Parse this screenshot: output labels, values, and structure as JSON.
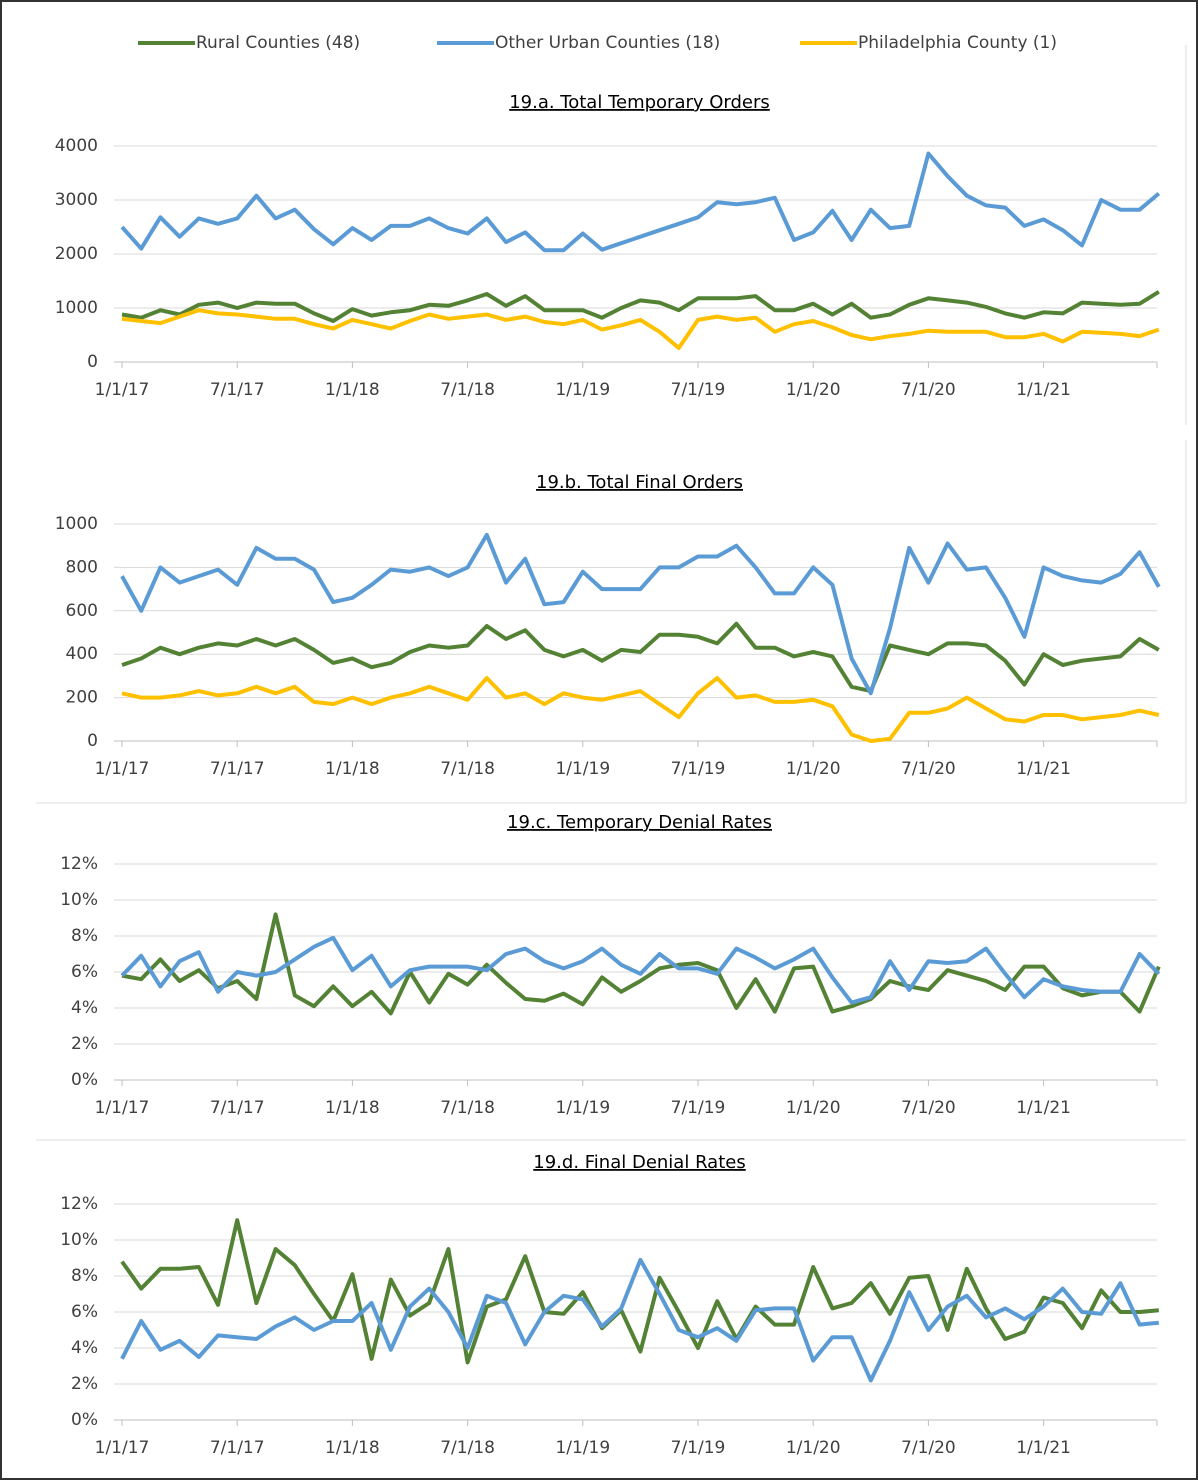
{
  "chart_data": [
    {
      "type": "line",
      "title": "19.a. Total Temporary Orders",
      "categories": [
        "1/1/17",
        null,
        null,
        null,
        null,
        null,
        "7/1/17",
        null,
        null,
        null,
        null,
        null,
        "1/1/18",
        null,
        null,
        null,
        null,
        null,
        "7/1/18",
        null,
        null,
        null,
        null,
        null,
        "1/1/19",
        null,
        null,
        null,
        null,
        null,
        "7/1/19",
        null,
        null,
        null,
        null,
        null,
        "1/1/20",
        null,
        null,
        null,
        null,
        null,
        "7/1/20",
        null,
        null,
        null,
        null,
        null,
        "1/1/21",
        null,
        null,
        null,
        null,
        null,
        null
      ],
      "series": [
        {
          "name": "Rural Counties (48)",
          "color": "#548235",
          "values": [
            880,
            820,
            960,
            880,
            1060,
            1100,
            1000,
            1100,
            1080,
            1080,
            900,
            760,
            980,
            860,
            920,
            960,
            1060,
            1040,
            1140,
            1260,
            1040,
            1220,
            960,
            960,
            960,
            820,
            1000,
            1140,
            1100,
            960,
            1180,
            1180,
            1180,
            1220,
            960,
            960,
            1080,
            880,
            1080,
            820,
            880,
            1060,
            1180,
            1140,
            1100,
            1020,
            900,
            820,
            920,
            900,
            1100,
            1080,
            1060,
            1080,
            1300
          ]
        },
        {
          "name": "Other Urban Counties (18)",
          "color": "#5b9bd5",
          "values": [
            2500,
            2100,
            2680,
            2320,
            2660,
            2560,
            2660,
            3080,
            2660,
            2820,
            2460,
            2180,
            2480,
            2260,
            2520,
            2520,
            2660,
            2480,
            2380,
            2660,
            2220,
            2400,
            2070,
            2070,
            2380,
            2080,
            2200,
            2320,
            2440,
            2560,
            2680,
            2960,
            2920,
            2960,
            3040,
            2260,
            2400,
            2800,
            2260,
            2820,
            2480,
            2520,
            3860,
            3440,
            3080,
            2900,
            2860,
            2520,
            2640,
            2440,
            2160,
            3000,
            2820,
            2820,
            3120
          ]
        },
        {
          "name": "Philadelphia County (1)",
          "color": "#ffc000",
          "values": [
            800,
            760,
            720,
            840,
            960,
            900,
            880,
            840,
            800,
            800,
            700,
            620,
            780,
            700,
            620,
            760,
            880,
            800,
            840,
            880,
            780,
            840,
            740,
            700,
            780,
            600,
            680,
            780,
            560,
            260,
            780,
            840,
            780,
            820,
            560,
            700,
            760,
            640,
            500,
            420,
            480,
            520,
            580,
            560,
            560,
            560,
            460,
            460,
            520,
            380,
            560,
            540,
            520,
            480,
            600
          ]
        }
      ],
      "ylim": [
        0,
        4000
      ],
      "yticks": [
        0,
        1000,
        2000,
        3000,
        4000
      ],
      "grid": true,
      "legend": "top"
    },
    {
      "type": "line",
      "title": "19.b. Total Final Orders",
      "categories": [
        "1/1/17",
        null,
        null,
        null,
        null,
        null,
        "7/1/17",
        null,
        null,
        null,
        null,
        null,
        "1/1/18",
        null,
        null,
        null,
        null,
        null,
        "7/1/18",
        null,
        null,
        null,
        null,
        null,
        "1/1/19",
        null,
        null,
        null,
        null,
        null,
        "7/1/19",
        null,
        null,
        null,
        null,
        null,
        "1/1/20",
        null,
        null,
        null,
        null,
        null,
        "7/1/20",
        null,
        null,
        null,
        null,
        null,
        "1/1/21",
        null,
        null,
        null,
        null,
        null,
        null
      ],
      "series": [
        {
          "color": "#548235",
          "values": [
            350,
            380,
            430,
            400,
            430,
            450,
            440,
            470,
            440,
            470,
            420,
            360,
            380,
            340,
            360,
            410,
            440,
            430,
            440,
            530,
            470,
            510,
            420,
            390,
            420,
            370,
            420,
            410,
            490,
            490,
            480,
            450,
            540,
            430,
            430,
            390,
            410,
            390,
            250,
            230,
            440,
            420,
            400,
            450,
            450,
            440,
            370,
            260,
            400,
            350,
            370,
            380,
            390,
            470,
            420
          ]
        },
        {
          "color": "#5b9bd5",
          "values": [
            760,
            600,
            800,
            730,
            760,
            790,
            720,
            890,
            840,
            840,
            790,
            640,
            660,
            720,
            790,
            780,
            800,
            760,
            800,
            950,
            730,
            840,
            630,
            640,
            780,
            700,
            700,
            700,
            800,
            800,
            850,
            850,
            900,
            800,
            680,
            680,
            800,
            720,
            380,
            220,
            520,
            890,
            730,
            910,
            790,
            800,
            660,
            480,
            800,
            760,
            740,
            730,
            770,
            870,
            710
          ]
        },
        {
          "color": "#ffc000",
          "values": [
            220,
            200,
            200,
            210,
            230,
            210,
            220,
            250,
            220,
            250,
            180,
            170,
            200,
            170,
            200,
            220,
            250,
            220,
            190,
            290,
            200,
            220,
            170,
            220,
            200,
            190,
            210,
            230,
            170,
            110,
            220,
            290,
            200,
            210,
            180,
            180,
            190,
            160,
            30,
            0,
            10,
            130,
            130,
            150,
            200,
            150,
            100,
            90,
            120,
            120,
            100,
            110,
            120,
            140,
            120
          ]
        }
      ],
      "ylim": [
        0,
        1000
      ],
      "yticks": [
        0,
        200,
        400,
        600,
        800,
        1000
      ],
      "grid": true
    },
    {
      "type": "line",
      "title": "19.c. Temporary Denial Rates",
      "categories": [
        "1/1/17",
        null,
        null,
        null,
        null,
        null,
        "7/1/17",
        null,
        null,
        null,
        null,
        null,
        "1/1/18",
        null,
        null,
        null,
        null,
        null,
        "7/1/18",
        null,
        null,
        null,
        null,
        null,
        "1/1/19",
        null,
        null,
        null,
        null,
        null,
        "7/1/19",
        null,
        null,
        null,
        null,
        null,
        "1/1/20",
        null,
        null,
        null,
        null,
        null,
        "7/1/20",
        null,
        null,
        null,
        null,
        null,
        "1/1/21",
        null,
        null,
        null,
        null,
        null,
        null
      ],
      "series": [
        {
          "color": "#548235",
          "values": [
            5.8,
            5.6,
            6.7,
            5.5,
            6.1,
            5.1,
            5.5,
            4.5,
            9.2,
            4.7,
            4.1,
            5.2,
            4.1,
            4.9,
            3.7,
            6.0,
            4.3,
            5.9,
            5.3,
            6.4,
            5.4,
            4.5,
            4.4,
            4.8,
            4.2,
            5.7,
            4.9,
            5.5,
            6.2,
            6.4,
            6.5,
            6.1,
            4.0,
            5.6,
            3.8,
            6.2,
            6.3,
            3.8,
            4.1,
            4.5,
            5.5,
            5.2,
            5.0,
            6.1,
            5.8,
            5.5,
            5.0,
            6.3,
            6.3,
            5.1,
            4.7,
            4.9,
            4.9,
            3.8,
            6.3
          ]
        },
        {
          "color": "#5b9bd5",
          "values": [
            5.8,
            6.9,
            5.2,
            6.6,
            7.1,
            4.9,
            6.0,
            5.8,
            6.0,
            6.7,
            7.4,
            7.9,
            6.1,
            6.9,
            5.2,
            6.1,
            6.3,
            6.3,
            6.3,
            6.1,
            7.0,
            7.3,
            6.6,
            6.2,
            6.6,
            7.3,
            6.4,
            5.9,
            7.0,
            6.2,
            6.2,
            5.9,
            7.3,
            6.8,
            6.2,
            6.7,
            7.3,
            5.7,
            4.3,
            4.6,
            6.6,
            5.0,
            6.6,
            6.5,
            6.6,
            7.3,
            5.9,
            4.6,
            5.6,
            5.2,
            5.0,
            4.9,
            4.9,
            7.0,
            5.9
          ]
        }
      ],
      "ylim": [
        0,
        12
      ],
      "yticks": [
        {
          "value": 0,
          "label": "0%"
        },
        {
          "value": 2,
          "label": "2%"
        },
        {
          "value": 4,
          "label": "4%"
        },
        {
          "value": 6,
          "label": "6%"
        },
        {
          "value": 8,
          "label": "8%"
        },
        {
          "value": 10,
          "label": "10%"
        },
        {
          "value": 12,
          "label": "12%"
        }
      ],
      "grid": true
    },
    {
      "type": "line",
      "title": "19.d. Final Denial Rates",
      "categories": [
        "1/1/17",
        null,
        null,
        null,
        null,
        null,
        "7/1/17",
        null,
        null,
        null,
        null,
        null,
        "1/1/18",
        null,
        null,
        null,
        null,
        null,
        "7/1/18",
        null,
        null,
        null,
        null,
        null,
        "1/1/19",
        null,
        null,
        null,
        null,
        null,
        "7/1/19",
        null,
        null,
        null,
        null,
        null,
        "1/1/20",
        null,
        null,
        null,
        null,
        null,
        "7/1/20",
        null,
        null,
        null,
        null,
        null,
        "1/1/21",
        null,
        null,
        null,
        null,
        null,
        null
      ],
      "series": [
        {
          "color": "#548235",
          "values": [
            8.8,
            7.3,
            8.4,
            8.4,
            8.5,
            6.4,
            11.1,
            6.5,
            9.5,
            8.6,
            7.0,
            5.5,
            8.1,
            3.4,
            7.8,
            5.8,
            6.5,
            9.5,
            3.2,
            6.3,
            6.7,
            9.1,
            6.0,
            5.9,
            7.1,
            5.1,
            6.1,
            3.8,
            7.9,
            6.0,
            4.0,
            6.6,
            4.5,
            6.3,
            5.3,
            5.3,
            8.5,
            6.2,
            6.5,
            7.6,
            5.9,
            7.9,
            8.0,
            5.0,
            8.4,
            6.2,
            4.5,
            4.9,
            6.8,
            6.5,
            5.1,
            7.2,
            6.0,
            6.0,
            6.1
          ]
        },
        {
          "color": "#5b9bd5",
          "values": [
            3.4,
            5.5,
            3.9,
            4.4,
            3.5,
            4.7,
            4.6,
            4.5,
            5.2,
            5.7,
            5.0,
            5.5,
            5.5,
            6.5,
            3.9,
            6.3,
            7.3,
            6.0,
            4.0,
            6.9,
            6.5,
            4.2,
            6.0,
            6.9,
            6.7,
            5.2,
            6.2,
            8.9,
            7.0,
            5.0,
            4.6,
            5.1,
            4.4,
            6.1,
            6.2,
            6.2,
            3.3,
            4.6,
            4.6,
            2.2,
            4.4,
            7.1,
            5.0,
            6.3,
            6.9,
            5.7,
            6.2,
            5.6,
            6.3,
            7.3,
            6.0,
            5.9,
            7.6,
            5.3,
            5.4
          ]
        }
      ],
      "ylim": [
        0,
        12
      ],
      "yticks": [
        {
          "value": 0,
          "label": "0%"
        },
        {
          "value": 2,
          "label": "2%"
        },
        {
          "value": 4,
          "label": "4%"
        },
        {
          "value": 6,
          "label": "6%"
        },
        {
          "value": 8,
          "label": "8%"
        },
        {
          "value": 10,
          "label": "10%"
        },
        {
          "value": 12,
          "label": "12%"
        }
      ],
      "grid": true
    }
  ]
}
